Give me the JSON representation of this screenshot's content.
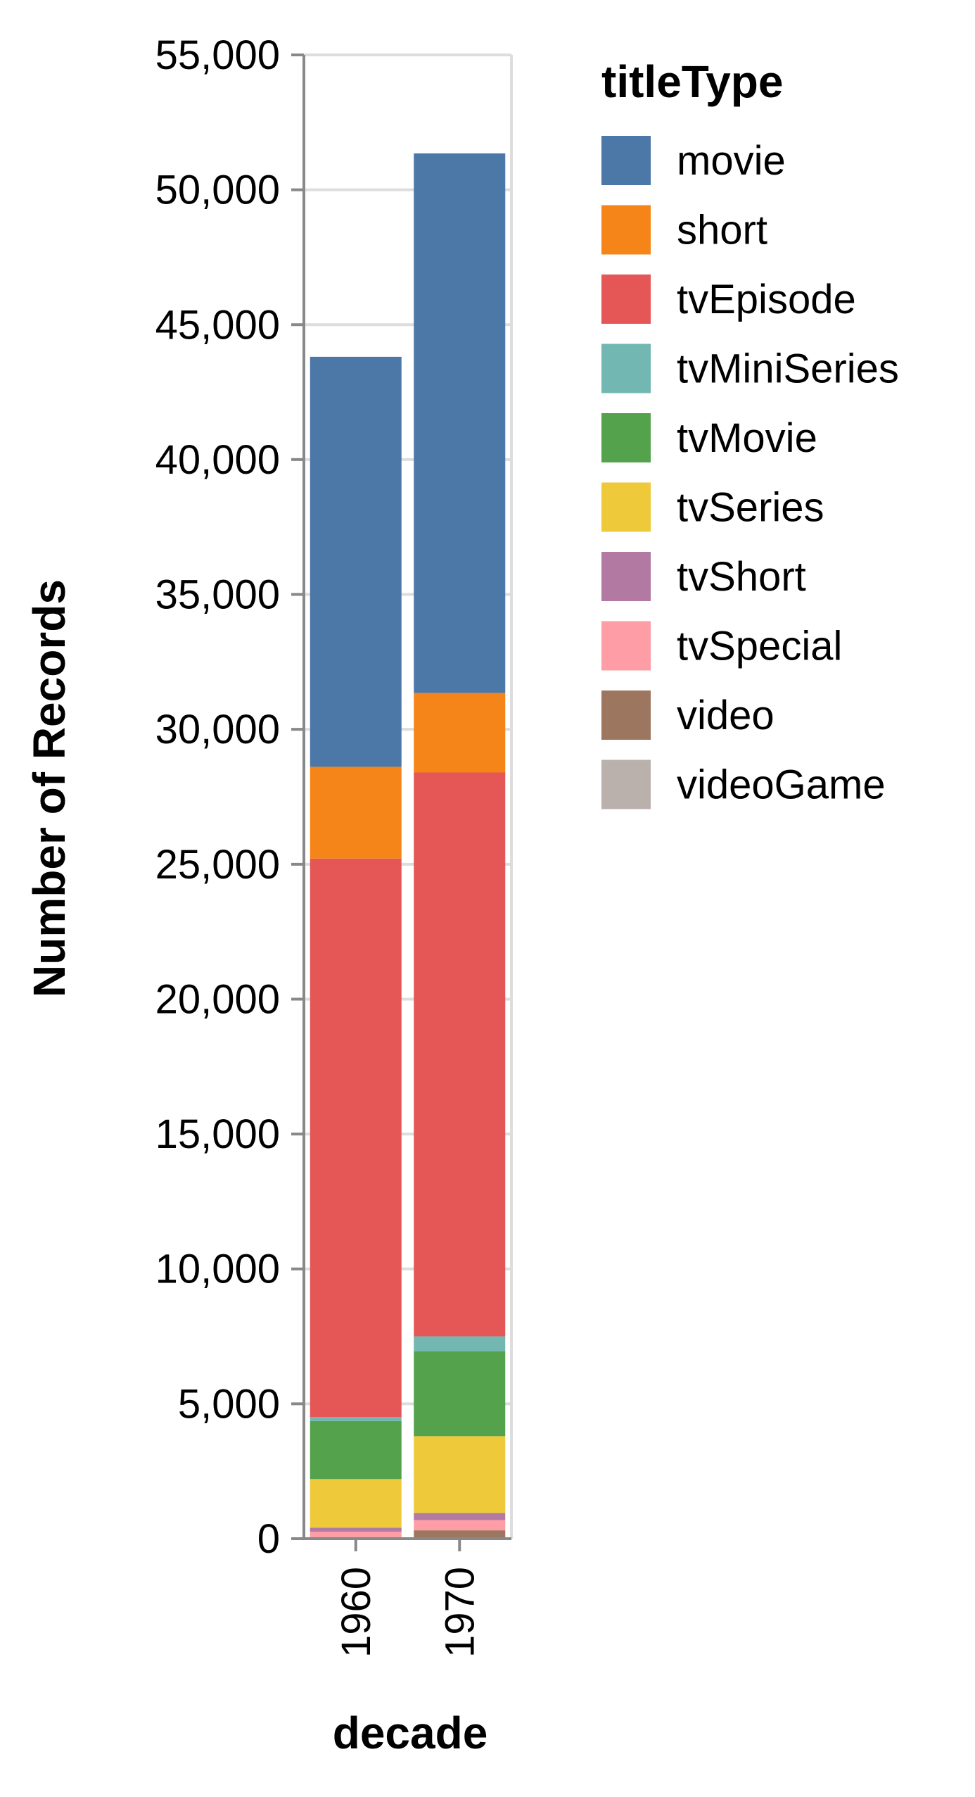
{
  "chart_data": {
    "type": "bar",
    "stacked": true,
    "xlabel": "decade",
    "ylabel": "Number of Records",
    "ylim": [
      0,
      55000
    ],
    "y_ticks": [
      0,
      5000,
      10000,
      15000,
      20000,
      25000,
      30000,
      35000,
      40000,
      45000,
      50000,
      55000
    ],
    "categories": [
      "1960",
      "1970"
    ],
    "grid": true,
    "legend": {
      "title": "titleType",
      "placement": "right"
    },
    "series": [
      {
        "name": "videoGame",
        "color": "#bab0ac",
        "values": [
          0,
          30
        ]
      },
      {
        "name": "video",
        "color": "#9d7660",
        "values": [
          60,
          280
        ]
      },
      {
        "name": "tvSpecial",
        "color": "#ff9da6",
        "values": [
          200,
          380
        ]
      },
      {
        "name": "tvShort",
        "color": "#b279a2",
        "values": [
          150,
          260
        ]
      },
      {
        "name": "tvSeries",
        "color": "#eeca3b",
        "values": [
          1800,
          2850
        ]
      },
      {
        "name": "tvMovie",
        "color": "#54a24b",
        "values": [
          2150,
          3150
        ]
      },
      {
        "name": "tvMiniSeries",
        "color": "#72b7b2",
        "values": [
          150,
          550
        ]
      },
      {
        "name": "tvEpisode",
        "color": "#e45756",
        "values": [
          20700,
          20900
        ]
      },
      {
        "name": "short",
        "color": "#f58518",
        "values": [
          3400,
          2950
        ]
      },
      {
        "name": "movie",
        "color": "#4c78a8",
        "values": [
          15200,
          20000
        ]
      }
    ],
    "legend_order": [
      "movie",
      "short",
      "tvEpisode",
      "tvMiniSeries",
      "tvMovie",
      "tvSeries",
      "tvShort",
      "tvSpecial",
      "video",
      "videoGame"
    ]
  }
}
